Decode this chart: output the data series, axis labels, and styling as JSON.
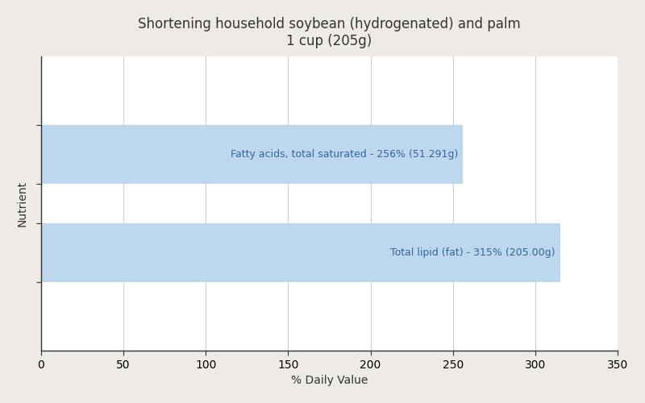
{
  "title_line1": "Shortening household soybean (hydrogenated) and palm",
  "title_line2": "1 cup (205g)",
  "xlabel": "% Daily Value",
  "ylabel": "Nutrient",
  "background_color": "#eeebe6",
  "plot_background_color": "#ffffff",
  "bar_color": "#bdd7ee",
  "bar_labels": [
    "Fatty acids, total saturated - 256% (51.291g)",
    "Total lipid (fat) - 315% (205.00g)"
  ],
  "bar_values": [
    256,
    315
  ],
  "bar_positions": [
    2,
    1
  ],
  "xlim": [
    0,
    350
  ],
  "xticks": [
    0,
    50,
    100,
    150,
    200,
    250,
    300,
    350
  ],
  "ylim": [
    0,
    3
  ],
  "grid_color": "#d0d0d0",
  "label_color": "#336699",
  "title_fontsize": 12,
  "axis_label_fontsize": 10,
  "tick_fontsize": 10,
  "bar_label_fontsize": 9,
  "bar_height": 0.6
}
